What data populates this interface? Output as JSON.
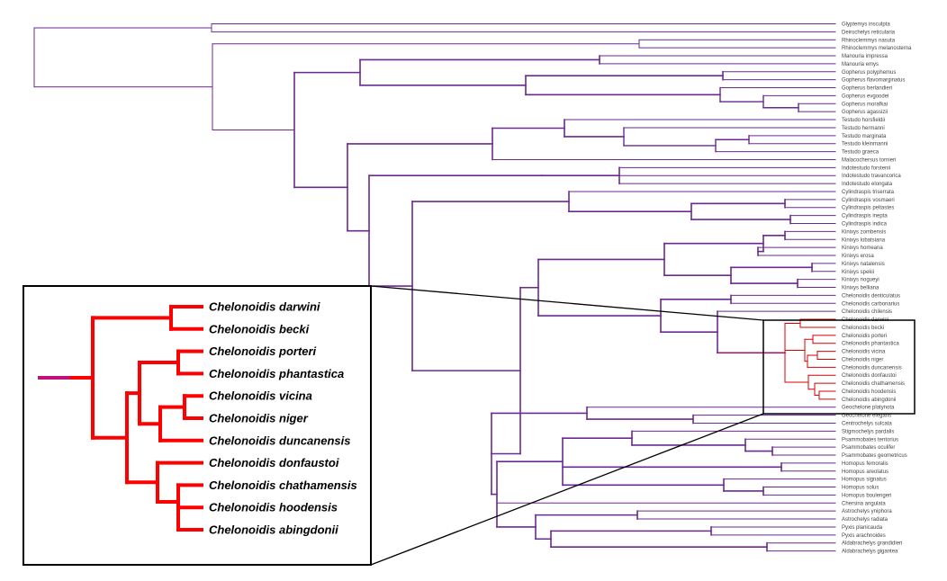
{
  "tree": {
    "colors": {
      "branch_main": "#4a18c8",
      "branch_root": "#6a2a90",
      "branch_clade": "#d40000",
      "branch_stem": "#b0106a",
      "inset_branch": "#ff0000",
      "inset_stem": "#c0107a"
    },
    "tips": [
      "Glyptemys insculpta",
      "Deirochelys reticularia",
      "Rhinoclemmys nasuta",
      "Rhinoclemmys melanosterna",
      "Manouria impressa",
      "Manouria emys",
      "Gopherus polyphemus",
      "Gopherus flavomarginatus",
      "Gopherus berlandieri",
      "Gopherus evgoodei",
      "Gopherus morafkai",
      "Gopherus agassizii",
      "Testudo horsfieldii",
      "Testudo hermanni",
      "Testudo marginata",
      "Testudo kleinmanni",
      "Testudo graeca",
      "Malacochersus tornieri",
      "Indotestudo forstenii",
      "Indotestudo travancorica",
      "Indotestudo elongata",
      "Cylindraspis triserrata",
      "Cylindraspis vosmaeri",
      "Cylindraspis peltastes",
      "Cylindraspis inepta",
      "Cylindraspis indica",
      "Kinixys zombensis",
      "Kinixys lobatsiana",
      "Kinixys homeana",
      "Kinixys erosa",
      "Kinixys natalensis",
      "Kinixys spekii",
      "Kinixys nogueyi",
      "Kinixys belliana",
      "Chelonoidis denticulatus",
      "Chelonoidis carbonarius",
      "Chelonoidis chilensis",
      "Chelonoidis darwini",
      "Chelonoidis becki",
      "Chelonoidis porteri",
      "Chelonoidis phantastica",
      "Chelonoidis vicina",
      "Chelonoidis niger",
      "Chelonoidis duncanensis",
      "Chelonoidis donfaustoi",
      "Chelonoidis chathamensis",
      "Chelonoidis hoodensis",
      "Chelonoidis abingdonii",
      "Geochelone platynota",
      "Geochelone elegans",
      "Centrochelys sulcata",
      "Stigmochelys pardalis",
      "Psammobates tentorius",
      "Psammobates oculifer",
      "Psammobates geometricus",
      "Homopus femoralis",
      "Homopus areolatus",
      "Homopus signatus",
      "Homopus solus",
      "Homopus boulengeri",
      "Chersina angulata",
      "Astrochelys yniphora",
      "Astrochelys radiata",
      "Pyxis planicauda",
      "Pyxis arachnoides",
      "Aldabrachelys grandidieri",
      "Aldabrachelys gigantea"
    ],
    "inset_tips": [
      "Chelonoidis darwini",
      "Chelonoidis becki",
      "Chelonoidis porteri",
      "Chelonoidis phantastica",
      "Chelonoidis vicina",
      "Chelonoidis niger",
      "Chelonoidis duncanensis",
      "Chelonoidis donfaustoi",
      "Chelonoidis chathamensis",
      "Chelonoidis hoodensis",
      "Chelonoidis abingdonii"
    ]
  }
}
